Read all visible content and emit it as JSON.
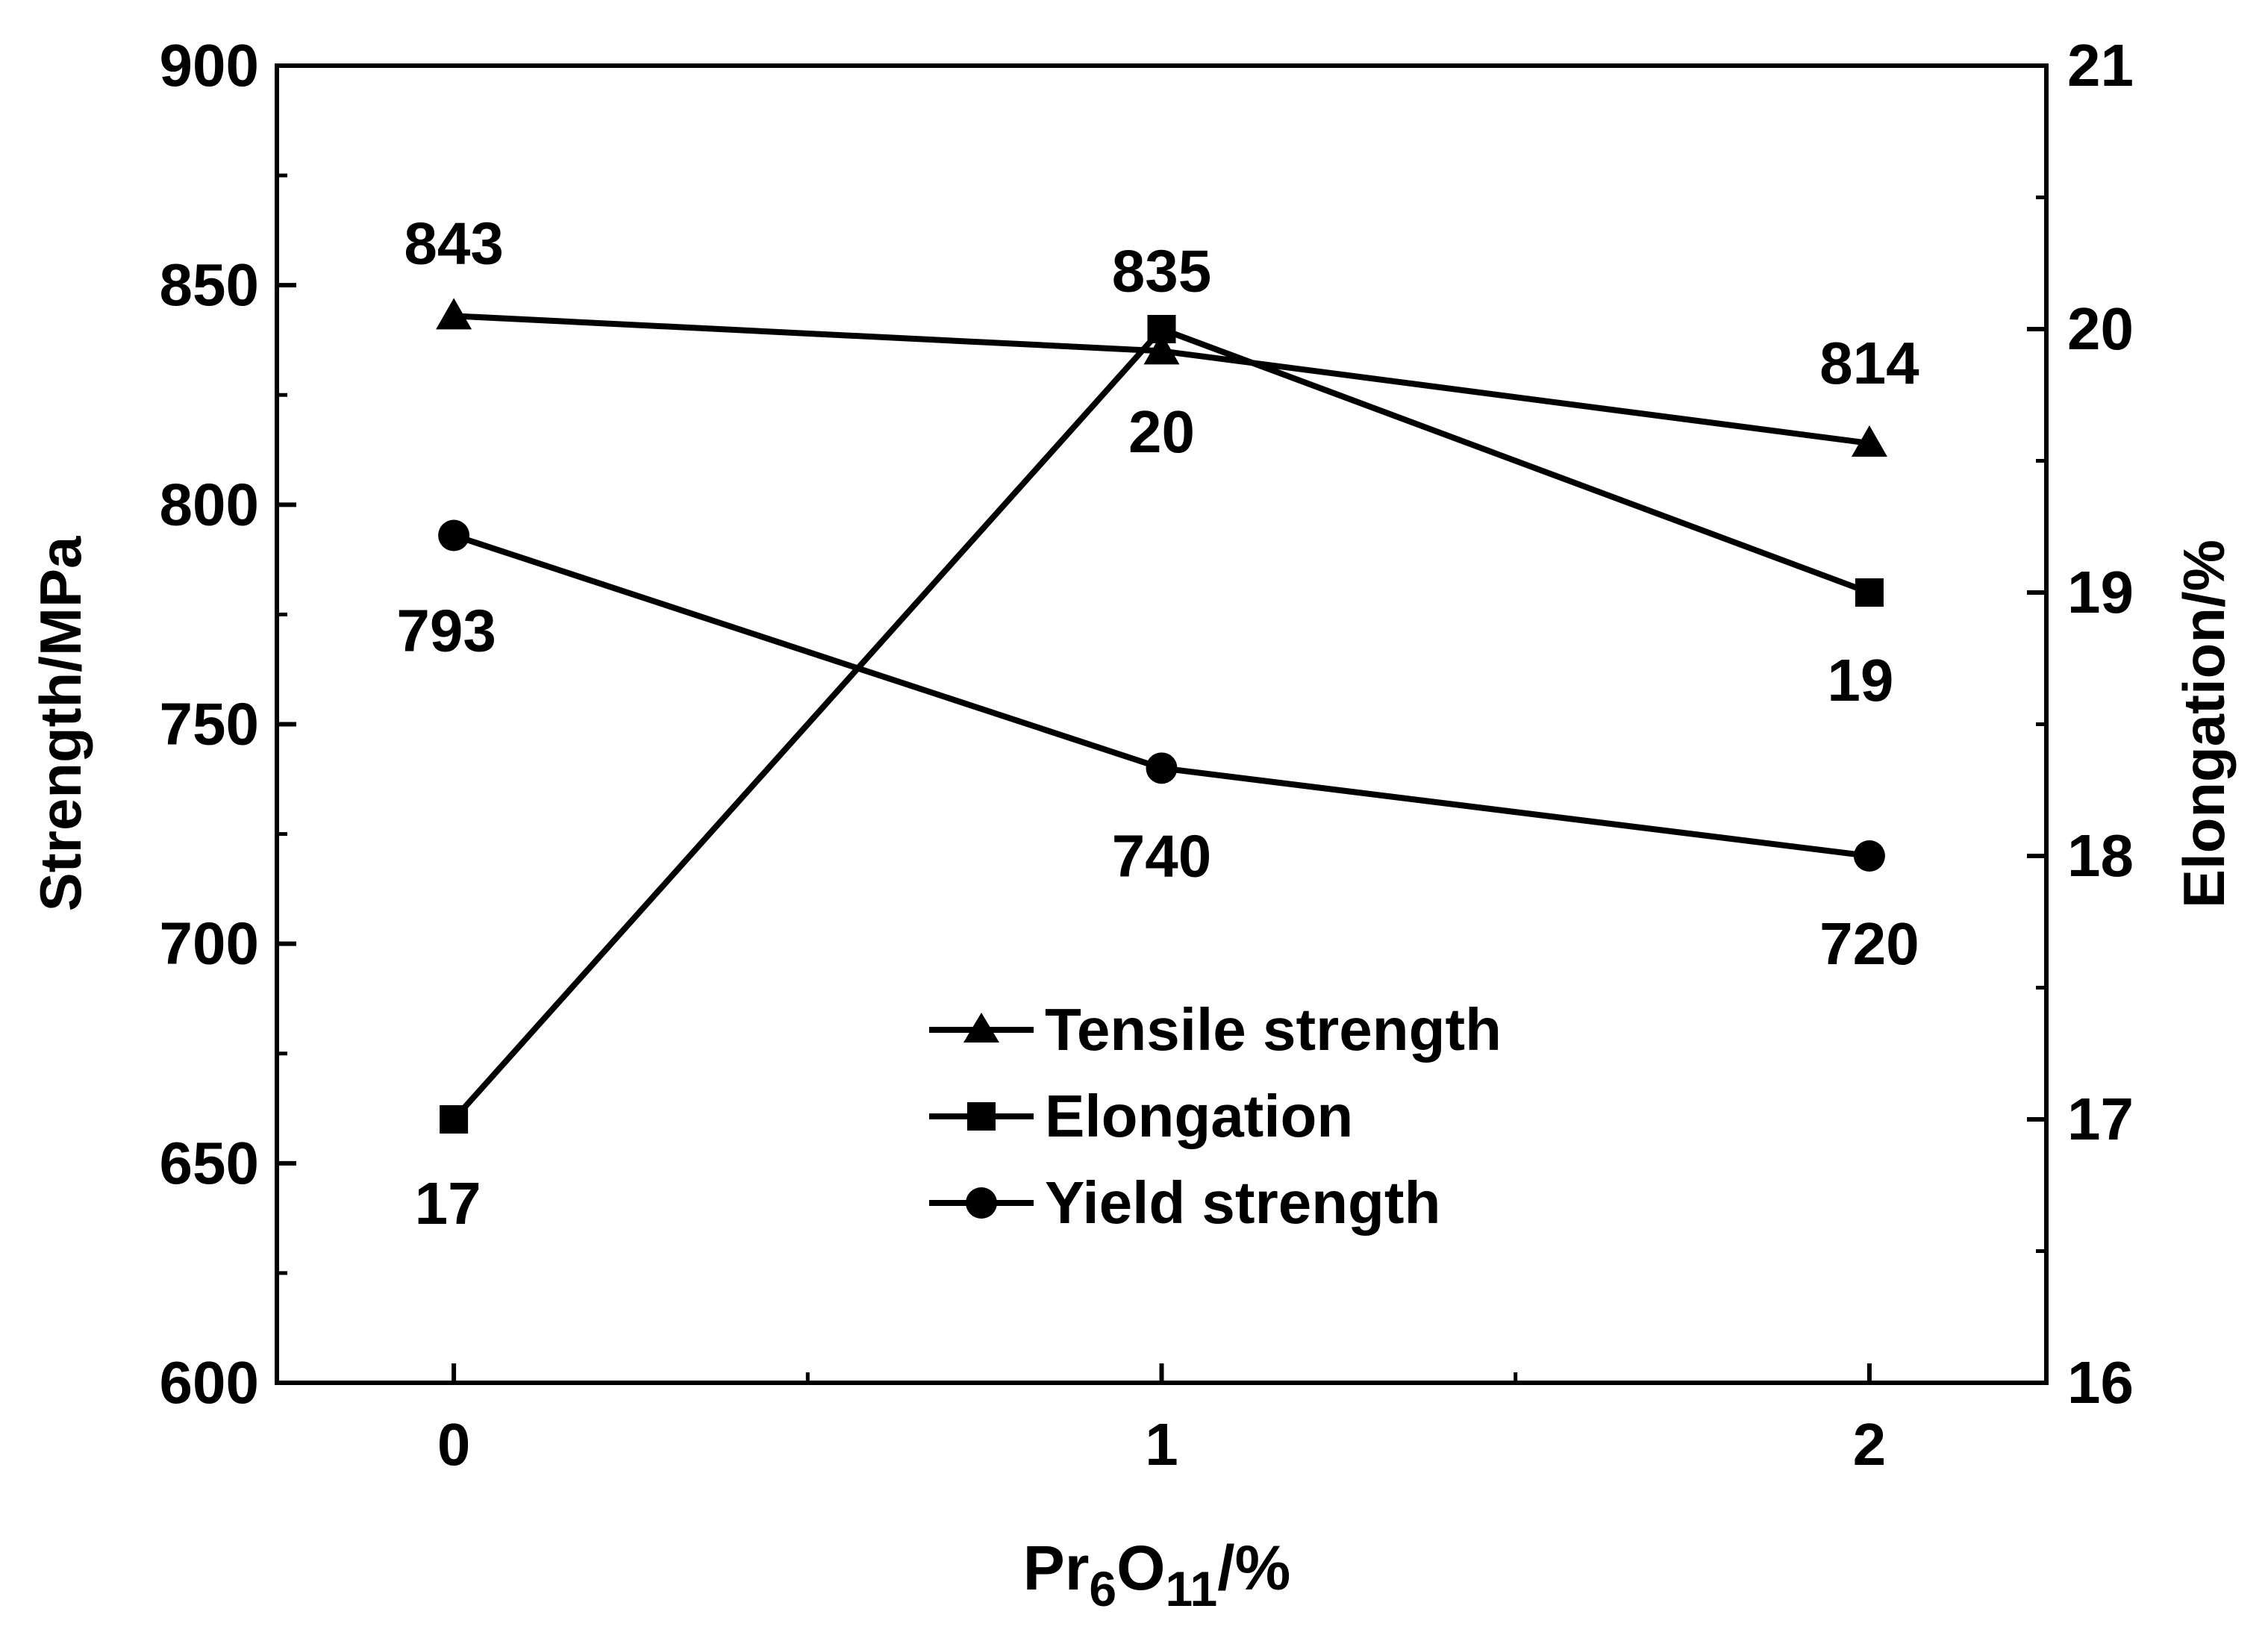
{
  "chart_data": {
    "type": "line",
    "xlabel": {
      "base": "Pr",
      "sub1": "6",
      "mid": "O",
      "sub2": "11",
      "suffix": "/%"
    },
    "ylabel_left": "Strength/MPa",
    "ylabel_right": "Elongation/%",
    "x": [
      0,
      1,
      2
    ],
    "x_ticks": [
      "0",
      "1",
      "2"
    ],
    "xlim": [
      -0.25,
      2.25
    ],
    "y_left_lim": [
      600,
      900
    ],
    "y_left_ticks": [
      "600",
      "650",
      "700",
      "750",
      "800",
      "850",
      "900"
    ],
    "y_right_lim": [
      16,
      21
    ],
    "y_right_ticks": [
      "16",
      "17",
      "18",
      "19",
      "20",
      "21"
    ],
    "series": [
      {
        "name": "Tensile strength",
        "axis": "left",
        "marker": "triangle",
        "values": [
          843,
          835,
          814
        ],
        "labels": [
          "843",
          "835",
          "814"
        ]
      },
      {
        "name": "Elongation",
        "axis": "right",
        "marker": "square",
        "values": [
          17,
          20,
          19
        ],
        "labels": [
          "17",
          "20",
          "19"
        ]
      },
      {
        "name": "Yield strength",
        "axis": "left",
        "marker": "circle",
        "values": [
          793,
          740,
          720
        ],
        "labels": [
          "793",
          "740",
          "720"
        ]
      }
    ],
    "legend_position": "bottom-center",
    "grid": false,
    "color": "#000000"
  }
}
